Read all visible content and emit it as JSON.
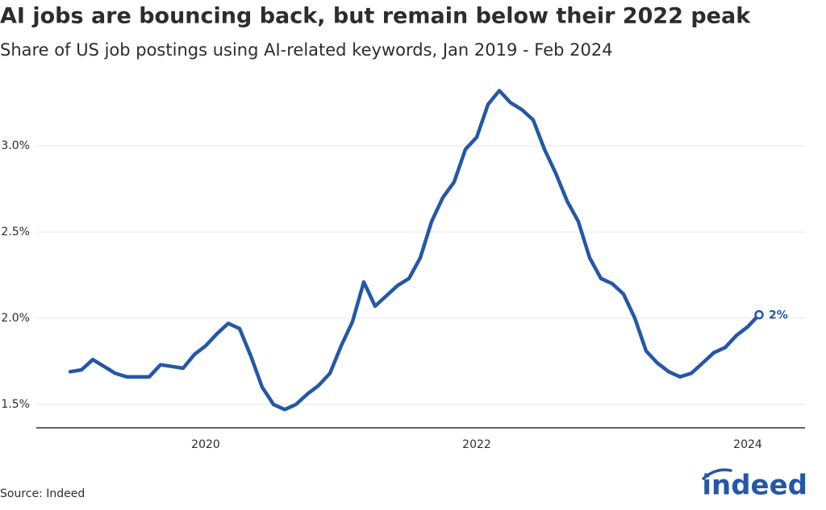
{
  "chart_data": {
    "type": "line",
    "title": "AI jobs are bouncing back, but remain below their 2022 peak",
    "subtitle": "Share of US job postings using AI-related keywords, Jan 2019 - Feb 2024",
    "source": "Source: Indeed",
    "logo": "indeed",
    "color": "#2557a7",
    "grid": true,
    "x": [
      "2019-01",
      "2019-02",
      "2019-03",
      "2019-04",
      "2019-05",
      "2019-06",
      "2019-07",
      "2019-08",
      "2019-09",
      "2019-10",
      "2019-11",
      "2019-12",
      "2020-01",
      "2020-02",
      "2020-03",
      "2020-04",
      "2020-05",
      "2020-06",
      "2020-07",
      "2020-08",
      "2020-09",
      "2020-10",
      "2020-11",
      "2020-12",
      "2021-01",
      "2021-02",
      "2021-03",
      "2021-04",
      "2021-05",
      "2021-06",
      "2021-07",
      "2021-08",
      "2021-09",
      "2021-10",
      "2021-11",
      "2021-12",
      "2022-01",
      "2022-02",
      "2022-03",
      "2022-04",
      "2022-05",
      "2022-06",
      "2022-07",
      "2022-08",
      "2022-09",
      "2022-10",
      "2022-11",
      "2022-12",
      "2023-01",
      "2023-02",
      "2023-03",
      "2023-04",
      "2023-05",
      "2023-06",
      "2023-07",
      "2023-08",
      "2023-09",
      "2023-10",
      "2023-11",
      "2023-12",
      "2024-01",
      "2024-02"
    ],
    "values": [
      1.69,
      1.7,
      1.76,
      1.72,
      1.68,
      1.66,
      1.66,
      1.66,
      1.73,
      1.72,
      1.71,
      1.79,
      1.84,
      1.91,
      1.97,
      1.94,
      1.78,
      1.6,
      1.5,
      1.47,
      1.5,
      1.56,
      1.61,
      1.68,
      1.84,
      1.98,
      2.21,
      2.07,
      2.13,
      2.19,
      2.23,
      2.35,
      2.56,
      2.7,
      2.79,
      2.98,
      3.05,
      3.24,
      3.32,
      3.25,
      3.21,
      3.15,
      2.98,
      2.84,
      2.68,
      2.56,
      2.35,
      2.23,
      2.2,
      2.14,
      2.0,
      1.81,
      1.74,
      1.69,
      1.66,
      1.68,
      1.74,
      1.8,
      1.83,
      1.9,
      1.95,
      2.02
    ],
    "value_labels": [
      null,
      null,
      null,
      null,
      null,
      null,
      null,
      null,
      null,
      null,
      null,
      null,
      null,
      null,
      null,
      null,
      null,
      null,
      null,
      null,
      null,
      null,
      null,
      null,
      null,
      null,
      null,
      null,
      null,
      null,
      null,
      null,
      null,
      null,
      null,
      null,
      null,
      null,
      null,
      null,
      null,
      null,
      null,
      null,
      null,
      null,
      null,
      null,
      null,
      null,
      null,
      null,
      null,
      null,
      null,
      null,
      null,
      null,
      null,
      null,
      null,
      "2%"
    ],
    "xlim": [
      "2018-10",
      "2024-06"
    ],
    "xticks": [
      "2020",
      "2022",
      "2024"
    ],
    "ylim": [
      1.35,
      3.4
    ],
    "yticks": [
      {
        "value": 1.5,
        "label": "1.5%"
      },
      {
        "value": 2.0,
        "label": "2.0%"
      },
      {
        "value": 2.5,
        "label": "2.5%"
      },
      {
        "value": 3.0,
        "label": "3.0%"
      }
    ]
  }
}
